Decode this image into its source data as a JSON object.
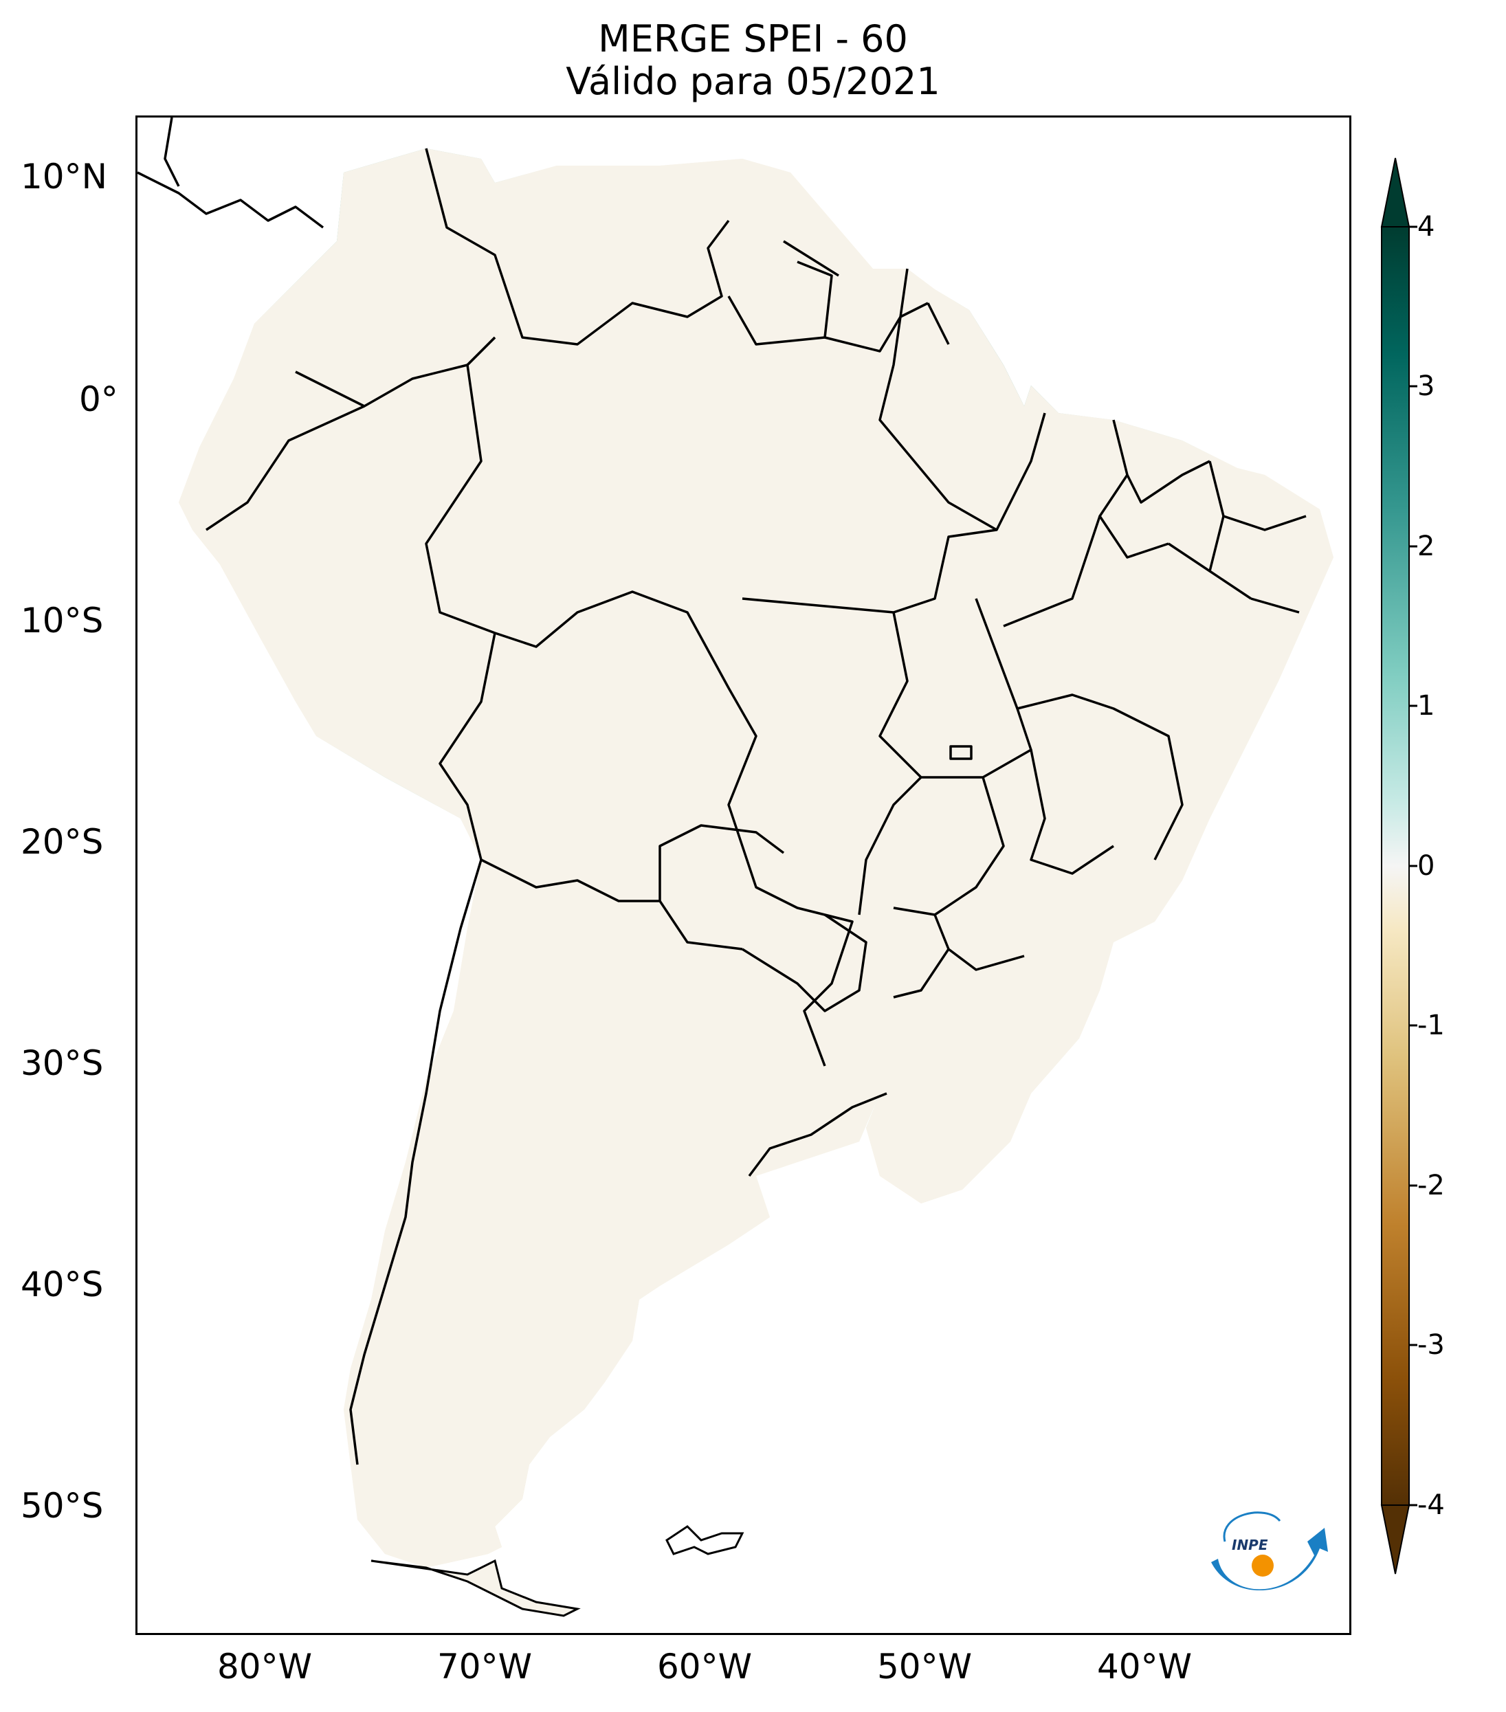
{
  "title": "MERGE   SPEI - 60",
  "subtitle": "Válido para 05/2021",
  "map": {
    "region": "South America",
    "lon_range": [
      -85,
      -30
    ],
    "lat_range": [
      -56,
      12
    ],
    "lat_ticks": [
      "10°N",
      "0°",
      "10°S",
      "20°S",
      "30°S",
      "40°S",
      "50°S"
    ],
    "lon_ticks": [
      "80°W",
      "70°W",
      "60°W",
      "50°W",
      "40°W"
    ],
    "wet_color": "#35978f",
    "dry_color": "#dfc27d",
    "border_color": "#000000"
  },
  "colorbar": {
    "ticks": [
      "4",
      "3",
      "2",
      "1",
      "0",
      "-1",
      "-2",
      "-3",
      "-4"
    ],
    "min": -4,
    "max": 4,
    "colors": [
      "#003c30",
      "#01665e",
      "#35978f",
      "#80cdc1",
      "#c7eae5",
      "#f5f5f5",
      "#f6e8c3",
      "#dfc27d",
      "#bf812d",
      "#8c510a",
      "#543005"
    ]
  },
  "logo": {
    "text": "INPE",
    "icon": "inpe-logo-icon"
  }
}
